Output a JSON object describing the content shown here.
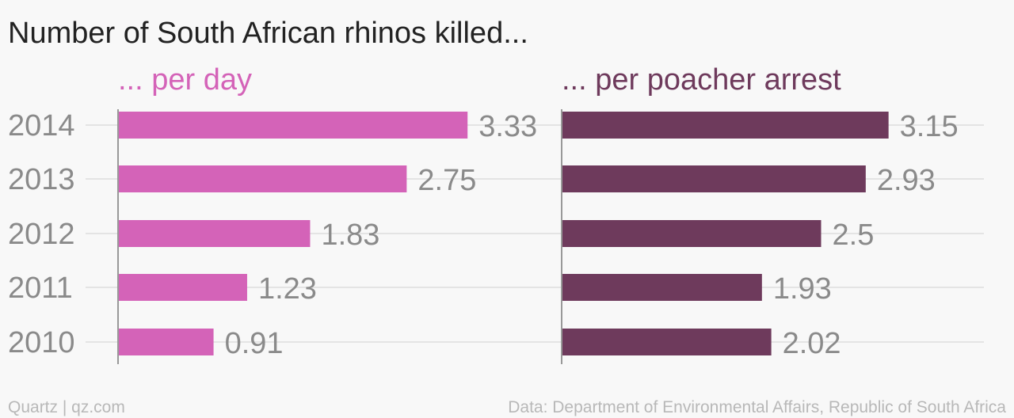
{
  "chart_data": {
    "type": "bar",
    "orientation": "horizontal",
    "title": "Number of South African rhinos killed...",
    "categories": [
      "2014",
      "2013",
      "2012",
      "2011",
      "2010"
    ],
    "series": [
      {
        "name": "... per day",
        "values": [
          3.33,
          2.75,
          1.83,
          1.23,
          0.91
        ],
        "color": "#d463b8"
      },
      {
        "name": "... per poacher arrest",
        "values": [
          3.15,
          2.93,
          2.5,
          1.93,
          2.02
        ],
        "color": "#6e3a5c"
      }
    ],
    "value_labels": [
      [
        "3.33",
        "2.75",
        "1.83",
        "1.23",
        "0.91"
      ],
      [
        "3.15",
        "2.93",
        "2.5",
        "1.93",
        "2.02"
      ]
    ],
    "grid": true,
    "legend": "none"
  },
  "footer": {
    "credit": "Quartz | qz.com",
    "source": "Data: Department of Environmental Affairs, Republic of South Africa"
  }
}
